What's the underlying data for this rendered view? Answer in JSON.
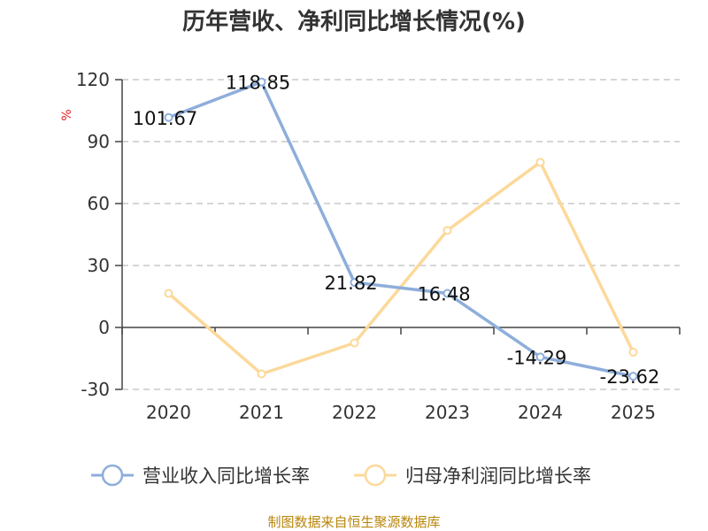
{
  "chart_data": {
    "type": "line",
    "title": "历年营收、净利同比增长情况(%)",
    "ylabel": "%",
    "categories": [
      "2020",
      "2021",
      "2022",
      "2023",
      "2024",
      "2025"
    ],
    "ylim": [
      -30,
      120
    ],
    "yticks": [
      120,
      90,
      60,
      30,
      0,
      -30
    ],
    "grid": true,
    "legend_position": "bottom",
    "series": [
      {
        "name": "营业收入同比增长率",
        "color": "#8eaedb",
        "values": [
          101.67,
          118.85,
          21.82,
          16.48,
          -14.29,
          -23.62
        ],
        "labels": [
          "101.67",
          "118.85",
          "21.82",
          "16.48",
          "-14.29",
          "-23.62"
        ]
      },
      {
        "name": "归母净利润同比增长率",
        "color": "#fcd99a",
        "values": [
          16.5,
          -22.5,
          -7.5,
          47.0,
          80.0,
          -12.0
        ],
        "labels": []
      }
    ]
  },
  "footer": {
    "source": "制图数据来自恒生聚源数据库"
  }
}
